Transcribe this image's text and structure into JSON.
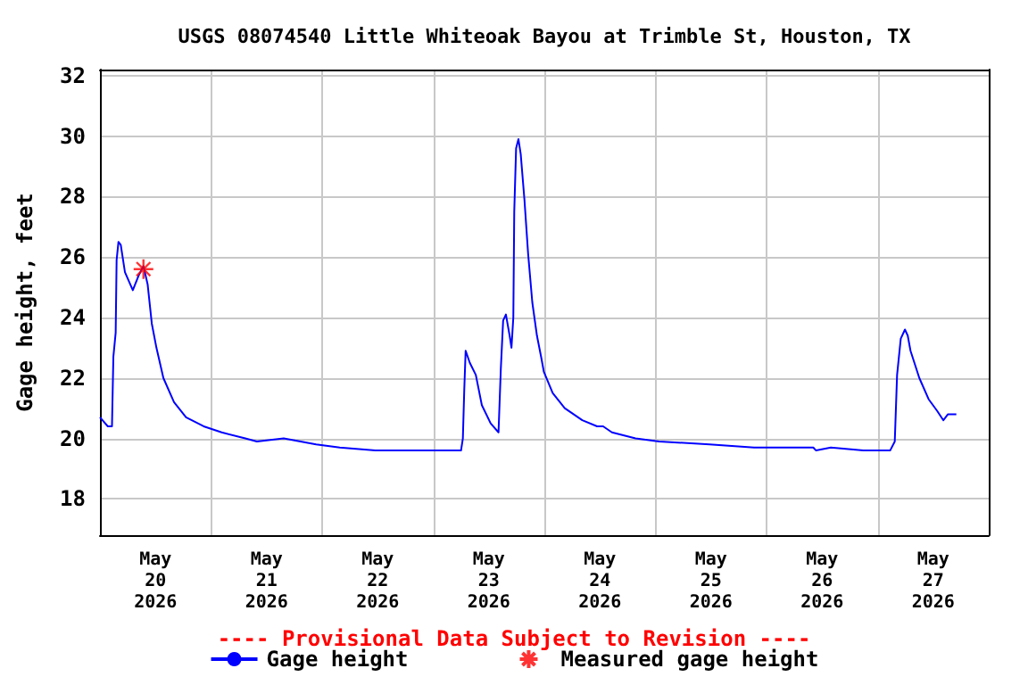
{
  "chart_data": {
    "type": "line",
    "title": "USGS 08074540 Little Whiteoak Bayou at Trimble St, Houston, TX",
    "ylabel": "Gage height, feet",
    "annotations": [
      "---- Provisional Data Subject to Revision ----"
    ],
    "xlim": [
      "2026-05-20T00:00",
      "2026-05-28T00:00"
    ],
    "xticks": [
      {
        "value": "2026-05-20T12:00",
        "label": "May\n20\n2026"
      },
      {
        "value": "2026-05-21T12:00",
        "label": "May\n21\n2026"
      },
      {
        "value": "2026-05-22T12:00",
        "label": "May\n22\n2026"
      },
      {
        "value": "2026-05-23T12:00",
        "label": "May\n23\n2026"
      },
      {
        "value": "2026-05-24T12:00",
        "label": "May\n24\n2026"
      },
      {
        "value": "2026-05-25T12:00",
        "label": "May\n25\n2026"
      },
      {
        "value": "2026-05-26T12:00",
        "label": "May\n26\n2026"
      },
      {
        "value": "2026-05-27T12:00",
        "label": "May\n27\n2026"
      },
      {
        "value": "2026-05-21T00:00",
        "label": null
      },
      {
        "value": "2026-05-22T00:00",
        "label": null
      },
      {
        "value": "2026-05-23T00:00",
        "label": null
      },
      {
        "value": "2026-05-24T00:00",
        "label": null
      },
      {
        "value": "2026-05-25T00:00",
        "label": null
      },
      {
        "value": "2026-05-26T00:00",
        "label": null
      },
      {
        "value": "2026-05-27T00:00",
        "label": null
      }
    ],
    "ylim": [
      16.8,
      32.2
    ],
    "yticks": [
      18,
      20,
      22,
      24,
      26,
      28,
      30,
      32
    ],
    "grid": true,
    "legend": "bottom",
    "series": [
      {
        "name": "Gage height",
        "type": "line",
        "color": "#0000ff",
        "marker": "none",
        "line_style": "solid",
        "x": [
          "2026-05-20T00:00",
          "2026-05-20T01:42",
          "2026-05-20T02:36",
          "2026-05-20T02:54",
          "2026-05-20T03:24",
          "2026-05-20T03:36",
          "2026-05-20T04:00",
          "2026-05-20T04:30",
          "2026-05-20T05:24",
          "2026-05-20T07:06",
          "2026-05-20T08:24",
          "2026-05-20T09:24",
          "2026-05-20T10:18",
          "2026-05-20T11:12",
          "2026-05-20T12:12",
          "2026-05-20T13:42",
          "2026-05-20T16:00",
          "2026-05-20T18:36",
          "2026-05-20T22:24",
          "2026-05-21T02:18",
          "2026-05-21T07:24",
          "2026-05-21T09:54",
          "2026-05-21T15:42",
          "2026-05-21T22:42",
          "2026-05-22T03:48",
          "2026-05-22T11:30",
          "2026-05-22T23:36",
          "2026-05-23T06:00",
          "2026-05-23T06:24",
          "2026-05-23T06:42",
          "2026-05-23T07:00",
          "2026-05-23T07:54",
          "2026-05-23T09:12",
          "2026-05-23T10:30",
          "2026-05-23T12:24",
          "2026-05-23T14:06",
          "2026-05-23T14:36",
          "2026-05-23T15:06",
          "2026-05-23T15:42",
          "2026-05-23T16:30",
          "2026-05-23T16:54",
          "2026-05-23T17:18",
          "2026-05-23T17:30",
          "2026-05-23T17:54",
          "2026-05-23T18:24",
          "2026-05-23T18:54",
          "2026-05-23T19:42",
          "2026-05-23T20:30",
          "2026-05-23T21:24",
          "2026-05-23T22:24",
          "2026-05-23T23:18",
          "2026-05-23T23:54",
          "2026-05-24T01:48",
          "2026-05-24T04:24",
          "2026-05-24T08:12",
          "2026-05-24T11:24",
          "2026-05-24T12:42",
          "2026-05-24T14:36",
          "2026-05-24T19:42",
          "2026-05-25T00:48",
          "2026-05-25T11:42",
          "2026-05-25T21:18",
          "2026-05-26T10:06",
          "2026-05-26T10:42",
          "2026-05-26T13:54",
          "2026-05-26T20:54",
          "2026-05-27T02:42",
          "2026-05-27T03:42",
          "2026-05-27T04:12",
          "2026-05-27T05:00",
          "2026-05-27T05:54",
          "2026-05-27T06:30",
          "2026-05-27T07:06",
          "2026-05-27T09:00",
          "2026-05-27T11:00",
          "2026-05-27T12:54",
          "2026-05-27T14:12",
          "2026-05-27T15:12",
          "2026-05-27T17:00"
        ],
        "values": [
          20.7,
          20.4,
          20.4,
          22.7,
          23.5,
          25.9,
          26.5,
          26.4,
          25.5,
          24.9,
          25.4,
          25.7,
          25.1,
          23.8,
          23.0,
          22.0,
          21.2,
          20.7,
          20.4,
          20.2,
          20.0,
          19.9,
          20.0,
          19.8,
          19.7,
          19.6,
          19.6,
          19.6,
          20.0,
          21.6,
          22.9,
          22.5,
          22.1,
          21.1,
          20.5,
          20.2,
          22.3,
          23.9,
          24.1,
          23.4,
          23.0,
          24.0,
          27.5,
          29.6,
          29.9,
          29.4,
          27.9,
          26.1,
          24.5,
          23.4,
          22.7,
          22.2,
          21.5,
          21.0,
          20.6,
          20.4,
          20.4,
          20.2,
          20.0,
          19.9,
          19.8,
          19.7,
          19.7,
          19.6,
          19.7,
          19.6,
          19.6,
          19.9,
          22.1,
          23.3,
          23.6,
          23.4,
          22.9,
          22.0,
          21.3,
          20.9,
          20.6,
          20.8,
          20.8
        ]
      },
      {
        "name": "Measured gage height",
        "type": "scatter",
        "color": "#ff0000",
        "marker": "cross",
        "x": [
          "2026-05-20T09:24"
        ],
        "values": [
          25.6
        ]
      }
    ]
  }
}
